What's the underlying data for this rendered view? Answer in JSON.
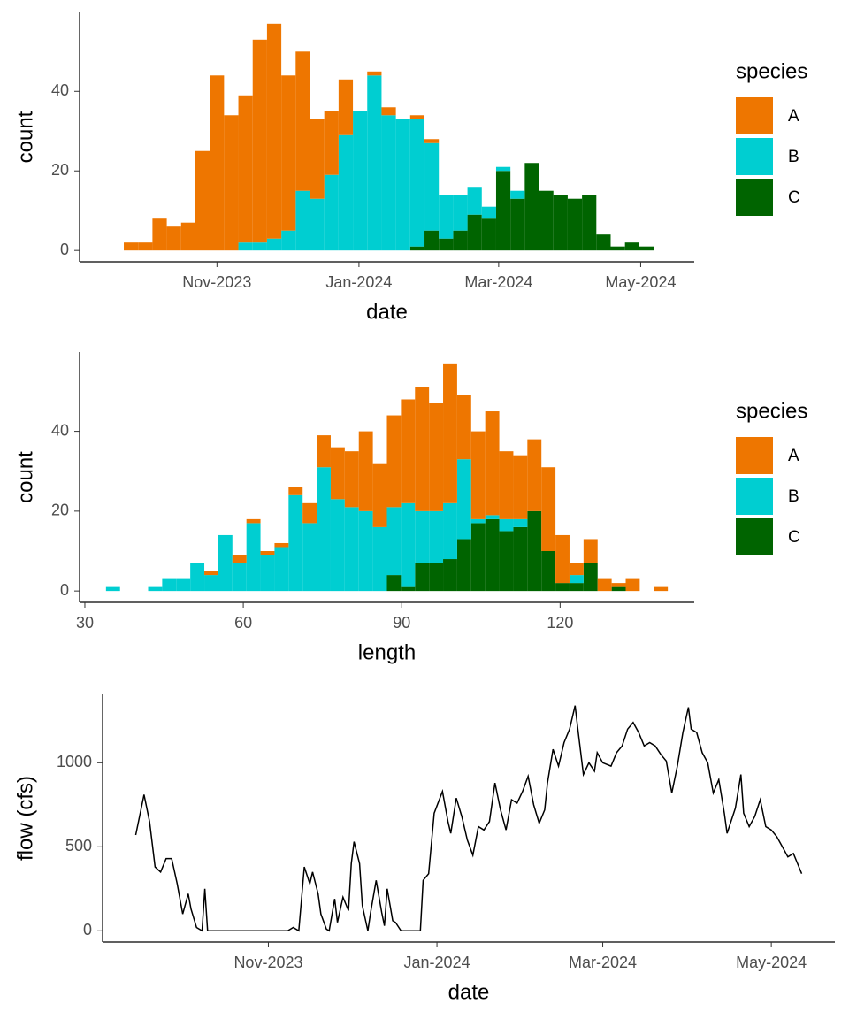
{
  "chart_data": [
    {
      "type": "histogram",
      "x_label": "date",
      "y_label": "count",
      "legend_title": "species",
      "bins": [
        264,
        270.15,
        276.3,
        282.45,
        288.6,
        294.75,
        300.9,
        307.05,
        313.2,
        319.35,
        325.5,
        331.65,
        337.8,
        343.95,
        350.1,
        356.25,
        362.4,
        368.55,
        374.7,
        380.85,
        387,
        393.15,
        399.3,
        405.45,
        411.6,
        417.75,
        423.9,
        430.05,
        436.2,
        442.35,
        448.5,
        454.65,
        460.8,
        466.95,
        473.1,
        479.25,
        485.4,
        491.55
      ],
      "series": [
        {
          "name": "A",
          "color": "#EE7600",
          "values": [
            2,
            2,
            8,
            6,
            7,
            25,
            44,
            34,
            37,
            51,
            54,
            39,
            35,
            20,
            16,
            14,
            0,
            1,
            2,
            0,
            1,
            1,
            0,
            0,
            0,
            0,
            0,
            0,
            0,
            0,
            0,
            0,
            0,
            0,
            0,
            0,
            0
          ]
        },
        {
          "name": "B",
          "color": "#00CED1",
          "values": [
            0,
            0,
            0,
            0,
            0,
            0,
            0,
            0,
            2,
            2,
            3,
            5,
            15,
            13,
            19,
            29,
            35,
            44,
            34,
            33,
            32,
            22,
            11,
            9,
            7,
            3,
            1,
            2,
            0,
            0,
            0,
            0,
            0,
            0,
            0,
            0,
            0
          ]
        },
        {
          "name": "C",
          "color": "#006400",
          "values": [
            0,
            0,
            0,
            0,
            0,
            0,
            0,
            0,
            0,
            0,
            0,
            0,
            0,
            0,
            0,
            0,
            0,
            0,
            0,
            0,
            1,
            5,
            3,
            5,
            9,
            8,
            20,
            13,
            22,
            15,
            14,
            13,
            14,
            4,
            1,
            2,
            1
          ]
        }
      ],
      "xlim": [
        245,
        509
      ],
      "xticks": [
        {
          "value": 304,
          "label": "Nov-2023"
        },
        {
          "value": 365,
          "label": "Jan-2024"
        },
        {
          "value": 425,
          "label": "Mar-2024"
        },
        {
          "value": 486,
          "label": "May-2024"
        }
      ],
      "ylim": [
        -2.85,
        59.85
      ],
      "yticks": [
        0,
        20,
        40
      ]
    },
    {
      "type": "histogram",
      "x_label": "length",
      "y_label": "count",
      "legend_title": "species",
      "bins": [
        34,
        36.66,
        39.32,
        41.98,
        44.64,
        47.3,
        49.96,
        52.62,
        55.28,
        57.94,
        60.6,
        63.26,
        65.92,
        68.58,
        71.24,
        73.9,
        76.56,
        79.22,
        81.88,
        84.54,
        87.2,
        89.86,
        92.52,
        95.18,
        97.84,
        100.5,
        103.16,
        105.82,
        108.48,
        111.14,
        113.8,
        116.46,
        119.12,
        121.78,
        124.44,
        127.1,
        129.76,
        132.42,
        135.08,
        137.74,
        140.4
      ],
      "series": [
        {
          "name": "A",
          "color": "#EE7600",
          "values": [
            0,
            0,
            0,
            0,
            0,
            0,
            0,
            1,
            0,
            2,
            1,
            1,
            1,
            2,
            5,
            8,
            13,
            14,
            20,
            16,
            23,
            26,
            31,
            27,
            35,
            16,
            22,
            26,
            17,
            16,
            18,
            21,
            12,
            3,
            6,
            3,
            1,
            3,
            0,
            1
          ]
        },
        {
          "name": "B",
          "color": "#00CED1",
          "values": [
            1,
            0,
            0,
            1,
            3,
            3,
            7,
            4,
            14,
            7,
            17,
            9,
            11,
            24,
            17,
            31,
            23,
            21,
            20,
            16,
            17,
            21,
            13,
            13,
            14,
            20,
            1,
            1,
            3,
            2,
            0,
            0,
            0,
            2,
            0,
            0,
            0,
            0,
            0,
            0
          ]
        },
        {
          "name": "C",
          "color": "#006400",
          "values": [
            0,
            0,
            0,
            0,
            0,
            0,
            0,
            0,
            0,
            0,
            0,
            0,
            0,
            0,
            0,
            0,
            0,
            0,
            0,
            0,
            4,
            1,
            7,
            7,
            8,
            13,
            17,
            18,
            15,
            16,
            20,
            10,
            2,
            2,
            7,
            0,
            1,
            0,
            0,
            0
          ]
        }
      ],
      "xlim": [
        29,
        145.4
      ],
      "xticks": [
        30,
        60,
        90,
        120
      ],
      "ylim": [
        -2.85,
        59.85
      ],
      "yticks": [
        0,
        20,
        40
      ]
    },
    {
      "type": "line",
      "x_label": "date",
      "y_label": "flow (cfs)",
      "color": "#000000",
      "x": [
        256,
        259,
        261,
        263,
        265,
        267,
        269,
        271,
        273,
        275,
        276,
        278,
        280,
        281,
        282,
        311,
        313,
        315,
        317,
        319,
        320,
        322,
        323,
        325,
        326,
        328,
        329,
        331,
        333,
        334,
        335,
        337,
        338,
        340,
        341,
        343,
        345,
        346,
        347,
        349,
        350,
        352,
        359,
        360,
        362,
        364,
        367,
        369,
        370,
        372,
        374,
        376,
        378,
        380,
        382,
        384,
        386,
        388,
        390,
        392,
        394,
        396,
        398,
        400,
        402,
        404,
        405,
        407,
        409,
        411,
        413,
        415,
        416,
        418,
        420,
        422,
        423,
        425,
        428,
        430,
        432,
        434,
        436,
        438,
        440,
        442,
        444,
        446,
        448,
        450,
        452,
        454,
        456,
        457,
        459,
        461,
        463,
        465,
        467,
        469,
        470,
        473,
        475,
        476,
        478,
        480,
        482,
        484,
        486,
        488,
        490,
        492,
        494,
        495,
        497
      ],
      "values": [
        570,
        810,
        650,
        380,
        350,
        430,
        430,
        280,
        100,
        220,
        130,
        20,
        0,
        250,
        0,
        0,
        20,
        0,
        380,
        280,
        350,
        220,
        100,
        10,
        0,
        190,
        50,
        200,
        120,
        400,
        530,
        400,
        150,
        0,
        110,
        300,
        110,
        30,
        250,
        60,
        50,
        0,
        0,
        300,
        340,
        700,
        830,
        650,
        580,
        790,
        680,
        540,
        450,
        620,
        600,
        650,
        880,
        720,
        600,
        780,
        760,
        830,
        920,
        750,
        640,
        720,
        880,
        1080,
        980,
        1120,
        1200,
        1340,
        1200,
        930,
        1000,
        950,
        1060,
        1000,
        980,
        1060,
        1100,
        1200,
        1240,
        1180,
        1100,
        1120,
        1100,
        1050,
        1010,
        820,
        980,
        1180,
        1330,
        1200,
        1180,
        1060,
        1000,
        820,
        900,
        700,
        580,
        730,
        930,
        700,
        620,
        680,
        780,
        620,
        600,
        560,
        500,
        440,
        460,
        420,
        340
      ],
      "xlim": [
        244,
        509
      ],
      "xticks": [
        {
          "value": 304,
          "label": "Nov-2023"
        },
        {
          "value": 365,
          "label": "Jan-2024"
        },
        {
          "value": 425,
          "label": "Mar-2024"
        },
        {
          "value": 486,
          "label": "May-2024"
        }
      ],
      "ylim": [
        -67,
        1407
      ],
      "yticks": [
        0,
        500,
        1000
      ]
    }
  ]
}
